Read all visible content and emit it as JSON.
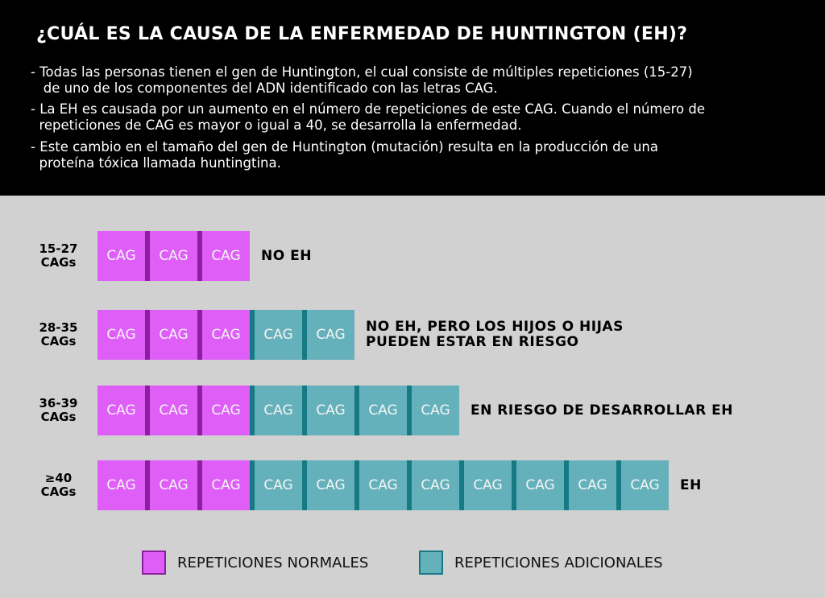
{
  "title": "¿CUÁL ES LA CAUSA DE LA ENFERMEDAD DE HUNTINGTON (EH)?",
  "bullets": [
    "- Todas las personas tienen el gen de Huntington, el cual consiste de múltiples repeticiones (15-27)\n   de uno de los componentes del ADN identificado con las letras CAG.",
    "- La EH es causada por un aumento en el número de repeticiones de este CAG. Cuando el número de\n  repeticiones de CAG es mayor o igual a 40, se desarrolla la enfermedad.",
    "- Este cambio en el tamaño del gen de Huntington (mutación) resulta en la producción de una\n  proteína tóxica llamada huntingtina."
  ],
  "block_label": "CAG",
  "colors": {
    "normal": "#df5ef8",
    "normal_div": "#8b1fa0",
    "additional": "#65b1bb",
    "additional_div": "#167a85"
  },
  "rows": [
    {
      "range": "15-27",
      "unit": "CAGs",
      "normal": 3,
      "additional": 0,
      "desc": [
        "NO EH"
      ]
    },
    {
      "range": "28-35",
      "unit": "CAGs",
      "normal": 3,
      "additional": 2,
      "desc": [
        "NO EH, PERO LOS HIJOS O HIJAS",
        "PUEDEN ESTAR EN RIESGO"
      ]
    },
    {
      "range": "36-39",
      "unit": "CAGs",
      "normal": 3,
      "additional": 4,
      "desc": [
        "EN RIESGO DE DESARROLLAR EH"
      ]
    },
    {
      "range": "≥40",
      "unit": "CAGs",
      "normal": 3,
      "additional": 8,
      "desc": [
        "EH"
      ]
    }
  ],
  "legend": {
    "normal": "REPETICIONES NORMALES",
    "additional": "REPETICIONES ADICIONALES"
  }
}
